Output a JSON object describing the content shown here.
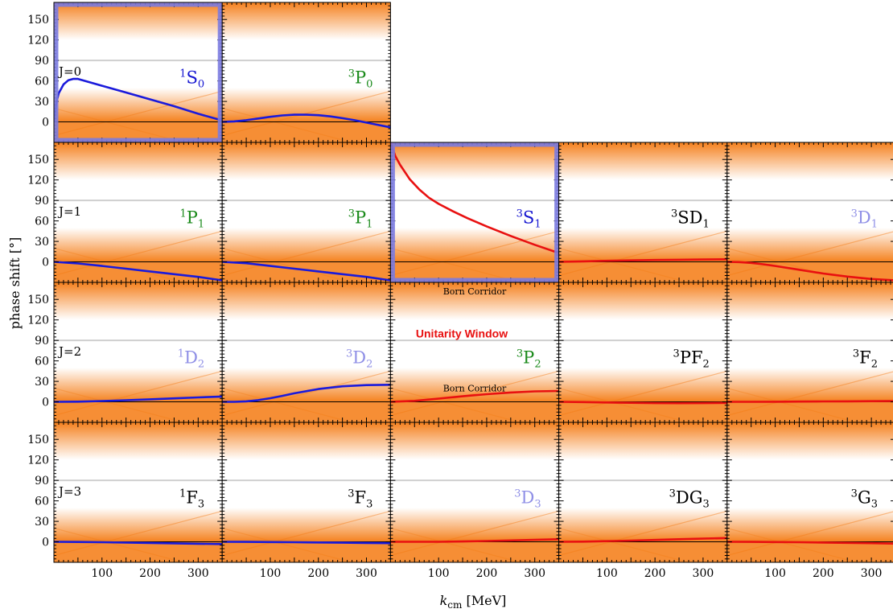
{
  "chart_data": {
    "type": "line",
    "xlabel": "k_cm [MeV]",
    "xlabel_italic_part": "k",
    "xlabel_sub": "cm",
    "xlabel_rest": " [MeV]",
    "ylabel": "phase shift [°]",
    "xlim": [
      0,
      350
    ],
    "ylim": [
      -30,
      175
    ],
    "xticks": [
      100,
      200,
      300
    ],
    "yticks": [
      0,
      30,
      60,
      90,
      120,
      150
    ],
    "grid_lines_y": [
      90,
      180
    ],
    "colors": {
      "blue_curve": "#1a1adb",
      "red_curve": "#e81010",
      "label_blue": "#1515d0",
      "label_green": "#1a8a1a",
      "label_lavender": "#8f8fe6",
      "label_black": "#000000",
      "highlight_frame": "#7b7be0",
      "band_orange": "#f47a12",
      "unitarity_red": "#e81010"
    },
    "annotations": {
      "unitarity_window": "Unitarity Window",
      "born_corridor_top": "Born Corridor",
      "born_corridor_bottom": "Born Corridor"
    },
    "rows": [
      {
        "j_label": "J=0",
        "panels": [
          {
            "col": 0,
            "sup": "1",
            "main": "S",
            "sub": "0",
            "label_color": "blue",
            "curve_color": "blue",
            "highlight": true,
            "x": [
              0,
              5,
              10,
              20,
              30,
              40,
              50,
              70,
              100,
              150,
              200,
              250,
              300,
              350
            ],
            "y": [
              0,
              28,
              42,
              55,
              61,
              63,
              63,
              59,
              53,
              43,
              33,
              23,
              12,
              2
            ]
          },
          {
            "col": 1,
            "sup": "3",
            "main": "P",
            "sub": "0",
            "label_color": "green",
            "curve_color": "blue",
            "highlight": false,
            "x": [
              0,
              25,
              50,
              75,
              100,
              125,
              150,
              175,
              200,
              225,
              250,
              275,
              300,
              325,
              350
            ],
            "y": [
              0,
              0.8,
              2.5,
              5,
              7.5,
              9.5,
              10.5,
              10.5,
              9.8,
              8,
              5.5,
              2.5,
              -1,
              -4.5,
              -8
            ]
          }
        ]
      },
      {
        "j_label": "J=1",
        "panels": [
          {
            "col": 0,
            "sup": "1",
            "main": "P",
            "sub": "1",
            "label_color": "green",
            "curve_color": "blue",
            "highlight": false,
            "x": [
              0,
              50,
              100,
              150,
              200,
              250,
              300,
              350
            ],
            "y": [
              0,
              -2.3,
              -6,
              -10,
              -14,
              -18,
              -22,
              -27
            ]
          },
          {
            "col": 1,
            "sup": "3",
            "main": "P",
            "sub": "1",
            "label_color": "green",
            "curve_color": "blue",
            "highlight": false,
            "x": [
              0,
              50,
              100,
              150,
              200,
              250,
              300,
              350
            ],
            "y": [
              0,
              -2,
              -6,
              -10,
              -14,
              -18,
              -22,
              -27
            ]
          },
          {
            "col": 2,
            "sup": "3",
            "main": "S",
            "sub": "1",
            "label_color": "blue",
            "curve_color": "red",
            "highlight": true,
            "x": [
              0,
              5,
              10,
              20,
              40,
              60,
              80,
              100,
              130,
              160,
              200,
              250,
              300,
              350
            ],
            "y": [
              175,
              165,
              155,
              142,
              121,
              106,
              94,
              85,
              74,
              64,
              52,
              38,
              25,
              13
            ]
          },
          {
            "col": 3,
            "sup": "3",
            "main": "SD",
            "sub": "1",
            "label_color": "black",
            "curve_color": "red",
            "highlight": false,
            "x": [
              0,
              50,
              100,
              150,
              200,
              250,
              300,
              350
            ],
            "y": [
              0,
              0.8,
              1.6,
              2.2,
              2.7,
              3.1,
              3.5,
              3.8
            ]
          },
          {
            "col": 4,
            "sup": "3",
            "main": "D",
            "sub": "1",
            "label_color": "lavender",
            "curve_color": "red",
            "highlight": false,
            "x": [
              0,
              25,
              50,
              75,
              100,
              150,
              200,
              250,
              300,
              350
            ],
            "y": [
              0,
              -0.3,
              -1.5,
              -3.5,
              -6,
              -11.5,
              -17,
              -21.5,
              -25,
              -27
            ]
          }
        ]
      },
      {
        "j_label": "J=2",
        "panels": [
          {
            "col": 0,
            "sup": "1",
            "main": "D",
            "sub": "2",
            "label_color": "lavender",
            "curve_color": "blue",
            "highlight": false,
            "x": [
              0,
              50,
              100,
              150,
              200,
              250,
              300,
              350
            ],
            "y": [
              0,
              0.3,
              1.2,
              2.4,
              3.7,
              5.1,
              6.5,
              7.8
            ]
          },
          {
            "col": 1,
            "sup": "3",
            "main": "D",
            "sub": "2",
            "label_color": "lavender",
            "curve_color": "blue",
            "highlight": false,
            "x": [
              0,
              25,
              50,
              75,
              100,
              125,
              150,
              200,
              250,
              300,
              350
            ],
            "y": [
              0,
              0.1,
              0.8,
              2.5,
              5.3,
              8.8,
              12.5,
              18.8,
              22.8,
              24.5,
              25
            ]
          },
          {
            "col": 2,
            "sup": "3",
            "main": "P",
            "sub": "2",
            "label_color": "green",
            "curve_color": "red",
            "highlight": false,
            "x": [
              0,
              50,
              100,
              150,
              200,
              250,
              300,
              350
            ],
            "y": [
              0,
              1.5,
              4.8,
              8.2,
              11.2,
              13.7,
              15.4,
              16
            ]
          },
          {
            "col": 3,
            "sup": "3",
            "main": "PF",
            "sub": "2",
            "label_color": "black",
            "curve_color": "red",
            "highlight": false,
            "x": [
              0,
              50,
              100,
              150,
              200,
              250,
              300,
              350
            ],
            "y": [
              0,
              -0.3,
              -0.9,
              -1.4,
              -1.8,
              -2,
              -1.9,
              -1.5
            ]
          },
          {
            "col": 4,
            "sup": "3",
            "main": "F",
            "sub": "2",
            "label_color": "black",
            "curve_color": "red",
            "highlight": false,
            "x": [
              0,
              50,
              100,
              150,
              200,
              250,
              300,
              350
            ],
            "y": [
              0,
              0.1,
              0.2,
              0.4,
              0.6,
              0.8,
              1,
              1.2
            ]
          }
        ]
      },
      {
        "j_label": "J=3",
        "panels": [
          {
            "col": 0,
            "sup": "1",
            "main": "F",
            "sub": "3",
            "label_color": "black",
            "curve_color": "blue",
            "highlight": false,
            "x": [
              0,
              50,
              100,
              150,
              200,
              250,
              300,
              350
            ],
            "y": [
              0,
              -0.2,
              -0.6,
              -1.1,
              -1.6,
              -2.2,
              -2.8,
              -3.3
            ]
          },
          {
            "col": 1,
            "sup": "3",
            "main": "F",
            "sub": "3",
            "label_color": "black",
            "curve_color": "blue",
            "highlight": false,
            "x": [
              0,
              50,
              100,
              150,
              200,
              250,
              300,
              350
            ],
            "y": [
              0,
              -0.1,
              -0.3,
              -0.6,
              -0.9,
              -1.2,
              -1.6,
              -2
            ]
          },
          {
            "col": 2,
            "sup": "3",
            "main": "D",
            "sub": "3",
            "label_color": "lavender",
            "curve_color": "red",
            "highlight": false,
            "x": [
              0,
              50,
              100,
              150,
              200,
              250,
              300,
              350
            ],
            "y": [
              0,
              0,
              0.1,
              0.5,
              1.2,
              2.1,
              3,
              3.8
            ]
          },
          {
            "col": 3,
            "sup": "3",
            "main": "DG",
            "sub": "3",
            "label_color": "black",
            "curve_color": "red",
            "highlight": false,
            "x": [
              0,
              50,
              100,
              150,
              200,
              250,
              300,
              350
            ],
            "y": [
              0,
              0.3,
              1,
              1.8,
              2.8,
              3.8,
              4.8,
              5.6
            ]
          },
          {
            "col": 4,
            "sup": "3",
            "main": "G",
            "sub": "3",
            "label_color": "black",
            "curve_color": "red",
            "highlight": false,
            "x": [
              0,
              50,
              100,
              150,
              200,
              250,
              300,
              350
            ],
            "y": [
              0,
              -0.1,
              -0.3,
              -0.6,
              -1,
              -1.5,
              -2,
              -2.6
            ]
          }
        ]
      }
    ]
  }
}
